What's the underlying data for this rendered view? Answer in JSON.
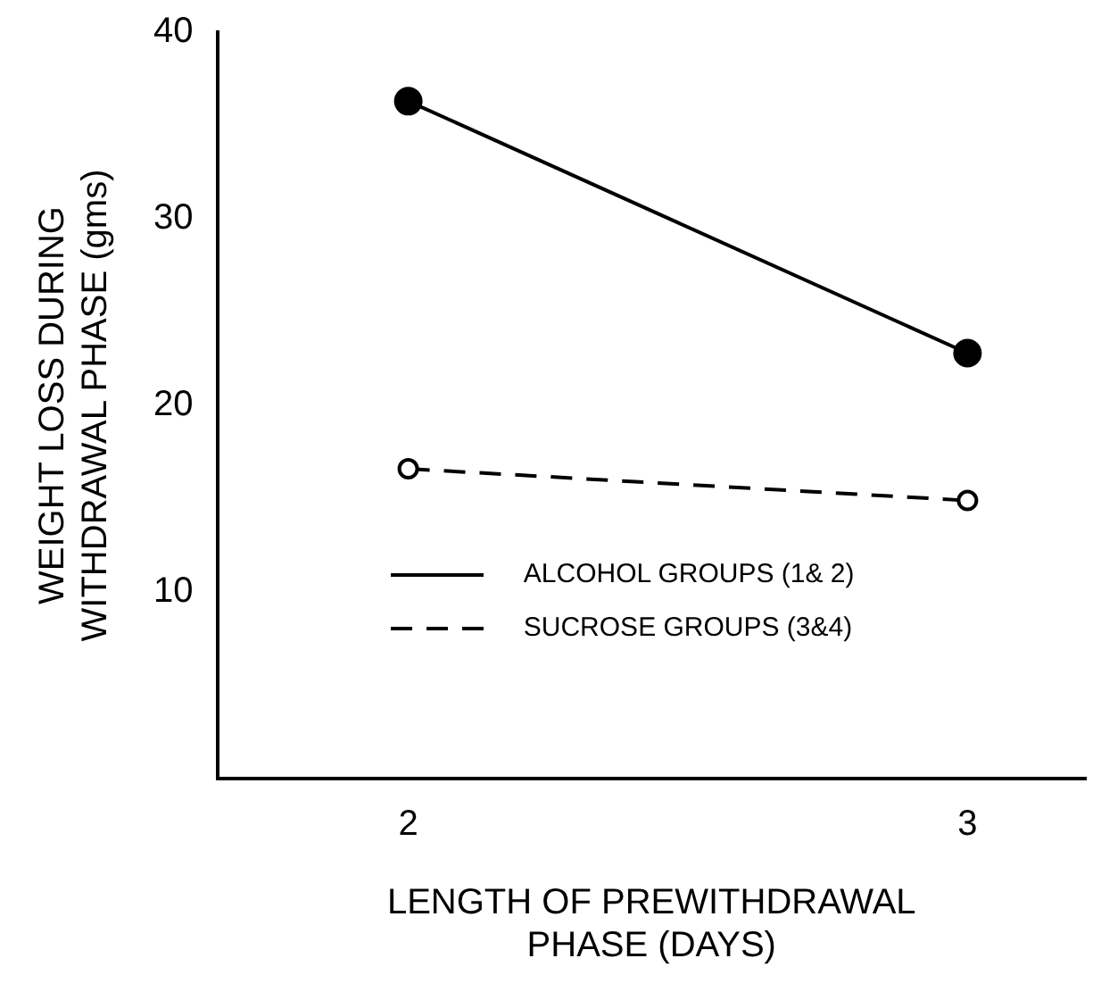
{
  "chart_data": {
    "type": "line",
    "xlabel": "LENGTH OF PREWITHDRAWAL\nPHASE (DAYS)",
    "ylabel": "WEIGHT LOSS DURING\nWITHDRAWAL PHASE (gms)",
    "x": [
      2,
      3
    ],
    "series": [
      {
        "name": "ALCOHOL GROUPS (1& 2)",
        "color": "#000000",
        "values": [
          36.3,
          22.8
        ],
        "line_style": "solid",
        "marker": "circle"
      },
      {
        "name": "SUCROSE GROUPS (3&4)",
        "color": "#000000",
        "values": [
          16.6,
          14.9
        ],
        "line_style": "dashed",
        "marker": "circle"
      }
    ],
    "xlim": [
      1.66,
      3.21
    ],
    "xticks": [
      2,
      3
    ],
    "ylim": [
      0,
      40
    ],
    "yticks": [
      10,
      20,
      30,
      40
    ],
    "grid": false,
    "legend": "bottom left"
  }
}
